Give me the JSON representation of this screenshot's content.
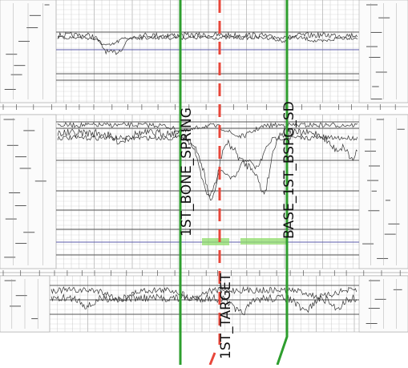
{
  "colors": {
    "background": "#ffffff",
    "grid": "#b8b8b8",
    "log_trace": "#333333",
    "formation_line": "#2e9e2e",
    "target_line": "#e8473a",
    "highlight": "#8fdc6a"
  },
  "markers": {
    "formation_1": "1ST_BONE_SPRING",
    "target": "1ST_TARGET",
    "formation_2": "BASE_1ST_BSPG_SD"
  },
  "log_panels": [
    {
      "name": "log-panel-1"
    },
    {
      "name": "log-panel-2"
    },
    {
      "name": "log-panel-3"
    }
  ]
}
